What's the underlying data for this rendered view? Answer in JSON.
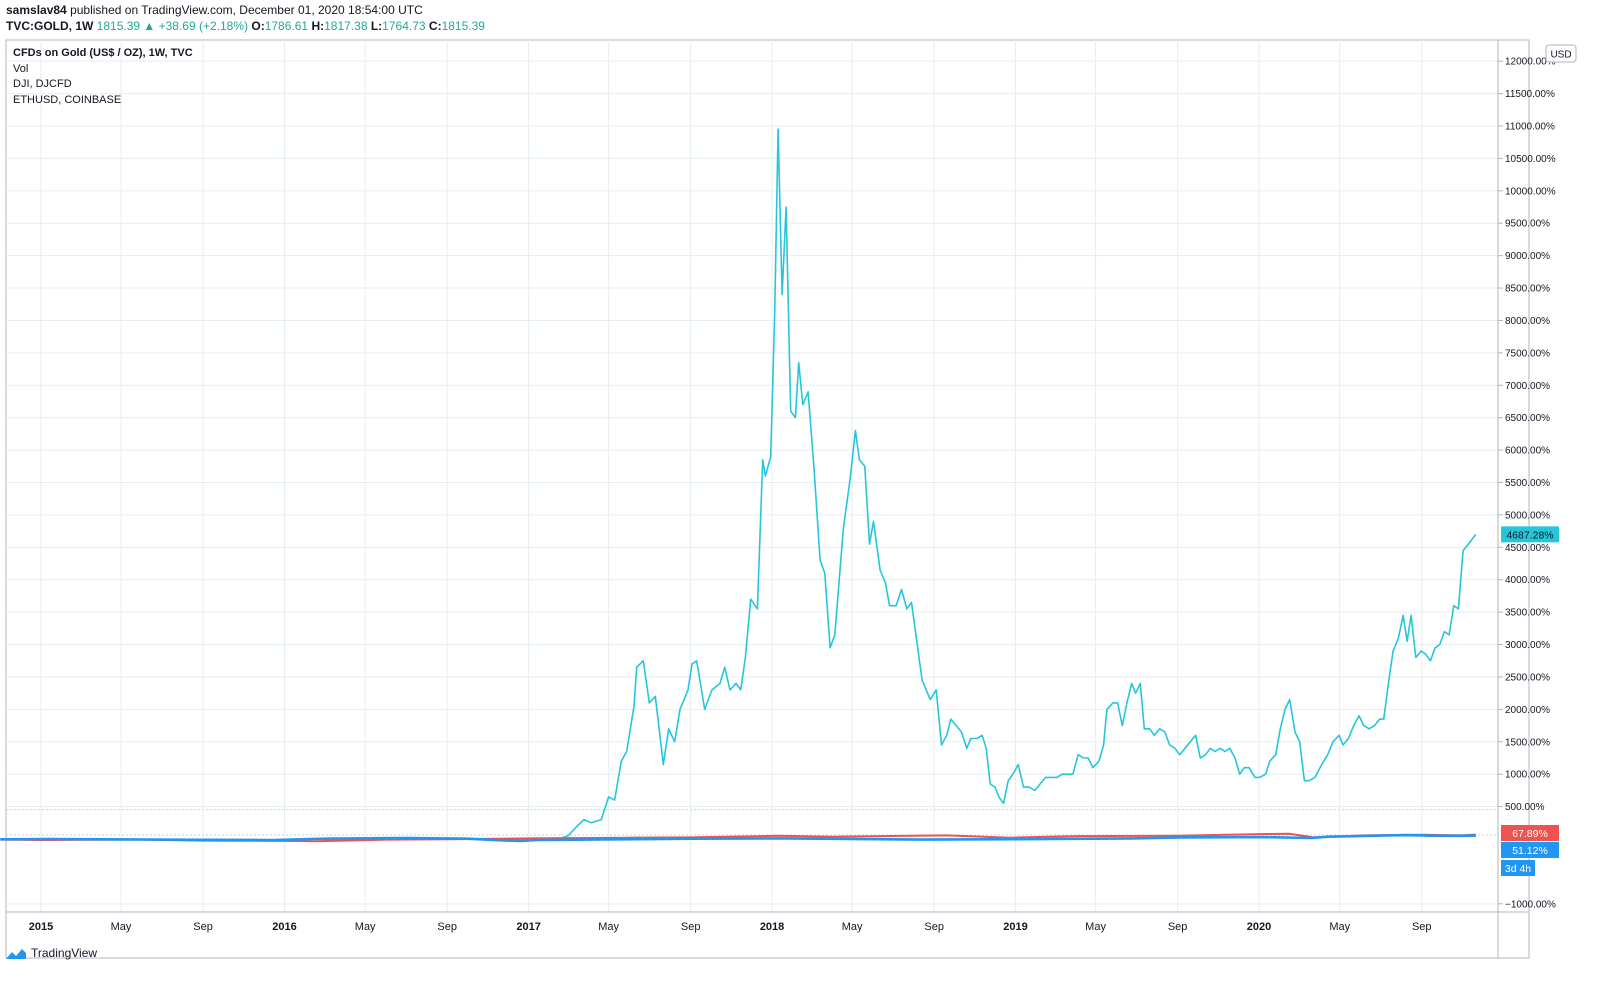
{
  "header": {
    "author": "samslav84",
    "published_text": "published on TradingView.com, December 01, 2020 18:54:00 UTC",
    "symbol": "TVC:GOLD, 1W",
    "last": "1815.39",
    "change": "▲ +38.69 (+2.18%)",
    "o_label": "O:",
    "o_value": "1786.61",
    "h_label": "H:",
    "h_value": "1817.38",
    "l_label": "L:",
    "l_value": "1764.73",
    "c_label": "C:",
    "c_value": "1815.39"
  },
  "legend": {
    "main": "CFDs on Gold (US$ / OZ), 1W, TVC",
    "items": [
      "Vol",
      "DJI, DJCFD",
      "ETHUSD, COINBASE"
    ]
  },
  "footer": {
    "brand": "TradingView"
  },
  "colors": {
    "eth": "#26c6da",
    "dji": "#ef5350",
    "gold": "#2196f3",
    "grid": "#e6eef3",
    "axis_text": "#131722"
  },
  "chart_data": {
    "type": "line",
    "xlabel": "",
    "ylabel": "",
    "y_unit": "%",
    "ylim": [
      -1000,
      12000
    ],
    "xlim": [
      "2014-11-01",
      "2020-12-05"
    ],
    "scale_currency": "USD",
    "y_ticks": [
      -1000,
      500,
      1000,
      1500,
      2000,
      2500,
      3000,
      3500,
      4000,
      4500,
      5000,
      5500,
      6000,
      6500,
      7000,
      7500,
      8000,
      8500,
      9000,
      9500,
      10000,
      10500,
      11000,
      11500,
      12000
    ],
    "y_tick_labels": [
      "−1000.00%",
      "500.00%",
      "1000.00%",
      "1500.00%",
      "2000.00%",
      "2500.00%",
      "3000.00%",
      "3500.00%",
      "4000.00%",
      "4500.00%",
      "5000.00%",
      "5500.00%",
      "6000.00%",
      "6500.00%",
      "7000.00%",
      "7500.00%",
      "8000.00%",
      "8500.00%",
      "9000.00%",
      "9500.00%",
      "10000.00%",
      "10500.00%",
      "11000.00%",
      "11500.00%",
      "12000.00%"
    ],
    "x_ticks": [
      {
        "date": "2015-01-01",
        "label": "2015",
        "major": true
      },
      {
        "date": "2015-05-01",
        "label": "May",
        "major": false
      },
      {
        "date": "2015-09-01",
        "label": "Sep",
        "major": false
      },
      {
        "date": "2016-01-01",
        "label": "2016",
        "major": true
      },
      {
        "date": "2016-05-01",
        "label": "May",
        "major": false
      },
      {
        "date": "2016-09-01",
        "label": "Sep",
        "major": false
      },
      {
        "date": "2017-01-01",
        "label": "2017",
        "major": true
      },
      {
        "date": "2017-05-01",
        "label": "May",
        "major": false
      },
      {
        "date": "2017-09-01",
        "label": "Sep",
        "major": false
      },
      {
        "date": "2018-01-01",
        "label": "2018",
        "major": true
      },
      {
        "date": "2018-05-01",
        "label": "May",
        "major": false
      },
      {
        "date": "2018-09-01",
        "label": "Sep",
        "major": false
      },
      {
        "date": "2019-01-01",
        "label": "2019",
        "major": true
      },
      {
        "date": "2019-05-01",
        "label": "May",
        "major": false
      },
      {
        "date": "2019-09-01",
        "label": "Sep",
        "major": false
      },
      {
        "date": "2020-01-01",
        "label": "2020",
        "major": true
      },
      {
        "date": "2020-05-01",
        "label": "May",
        "major": false
      },
      {
        "date": "2020-09-01",
        "label": "Sep",
        "major": false
      }
    ],
    "series": [
      {
        "name": "ETHUSD, COINBASE",
        "last_label": "4687.28%",
        "points": [
          [
            "2017-02-15",
            0
          ],
          [
            "2017-03-01",
            50
          ],
          [
            "2017-03-15",
            200
          ],
          [
            "2017-03-25",
            300
          ],
          [
            "2017-04-05",
            250
          ],
          [
            "2017-04-20",
            300
          ],
          [
            "2017-05-01",
            650
          ],
          [
            "2017-05-10",
            600
          ],
          [
            "2017-05-20",
            1200
          ],
          [
            "2017-05-28",
            1350
          ],
          [
            "2017-06-08",
            2050
          ],
          [
            "2017-06-12",
            2650
          ],
          [
            "2017-06-22",
            2750
          ],
          [
            "2017-07-01",
            2100
          ],
          [
            "2017-07-10",
            2200
          ],
          [
            "2017-07-22",
            1150
          ],
          [
            "2017-07-30",
            1700
          ],
          [
            "2017-08-08",
            1500
          ],
          [
            "2017-08-16",
            2000
          ],
          [
            "2017-08-28",
            2300
          ],
          [
            "2017-09-03",
            2700
          ],
          [
            "2017-09-10",
            2750
          ],
          [
            "2017-09-22",
            2000
          ],
          [
            "2017-10-03",
            2300
          ],
          [
            "2017-10-15",
            2400
          ],
          [
            "2017-10-22",
            2650
          ],
          [
            "2017-10-30",
            2300
          ],
          [
            "2017-11-08",
            2400
          ],
          [
            "2017-11-15",
            2300
          ],
          [
            "2017-11-22",
            2800
          ],
          [
            "2017-11-30",
            3700
          ],
          [
            "2017-12-10",
            3550
          ],
          [
            "2017-12-18",
            5850
          ],
          [
            "2017-12-22",
            5600
          ],
          [
            "2017-12-30",
            5900
          ],
          [
            "2018-01-05",
            8100
          ],
          [
            "2018-01-10",
            10950
          ],
          [
            "2018-01-16",
            8400
          ],
          [
            "2018-01-22",
            9750
          ],
          [
            "2018-01-29",
            6600
          ],
          [
            "2018-02-05",
            6500
          ],
          [
            "2018-02-10",
            7350
          ],
          [
            "2018-02-16",
            6700
          ],
          [
            "2018-02-24",
            6900
          ],
          [
            "2018-03-05",
            5700
          ],
          [
            "2018-03-14",
            4300
          ],
          [
            "2018-03-21",
            4100
          ],
          [
            "2018-03-29",
            2950
          ],
          [
            "2018-04-05",
            3150
          ],
          [
            "2018-04-18",
            4800
          ],
          [
            "2018-04-28",
            5550
          ],
          [
            "2018-05-06",
            6300
          ],
          [
            "2018-05-12",
            5850
          ],
          [
            "2018-05-20",
            5750
          ],
          [
            "2018-05-27",
            4550
          ],
          [
            "2018-06-02",
            4900
          ],
          [
            "2018-06-12",
            4150
          ],
          [
            "2018-06-20",
            3950
          ],
          [
            "2018-06-26",
            3600
          ],
          [
            "2018-07-06",
            3600
          ],
          [
            "2018-07-14",
            3850
          ],
          [
            "2018-07-22",
            3550
          ],
          [
            "2018-07-29",
            3650
          ],
          [
            "2018-08-06",
            3050
          ],
          [
            "2018-08-14",
            2450
          ],
          [
            "2018-08-20",
            2300
          ],
          [
            "2018-08-26",
            2150
          ],
          [
            "2018-09-04",
            2300
          ],
          [
            "2018-09-12",
            1450
          ],
          [
            "2018-09-20",
            1600
          ],
          [
            "2018-09-26",
            1850
          ],
          [
            "2018-10-04",
            1750
          ],
          [
            "2018-10-12",
            1650
          ],
          [
            "2018-10-20",
            1400
          ],
          [
            "2018-10-26",
            1550
          ],
          [
            "2018-11-04",
            1550
          ],
          [
            "2018-11-12",
            1600
          ],
          [
            "2018-11-18",
            1400
          ],
          [
            "2018-11-24",
            850
          ],
          [
            "2018-12-01",
            800
          ],
          [
            "2018-12-07",
            650
          ],
          [
            "2018-12-14",
            550
          ],
          [
            "2018-12-21",
            900
          ],
          [
            "2018-12-28",
            1000
          ],
          [
            "2019-01-05",
            1150
          ],
          [
            "2019-01-13",
            800
          ],
          [
            "2019-01-21",
            800
          ],
          [
            "2019-01-30",
            750
          ],
          [
            "2019-02-07",
            850
          ],
          [
            "2019-02-15",
            950
          ],
          [
            "2019-02-24",
            950
          ],
          [
            "2019-03-04",
            950
          ],
          [
            "2019-03-12",
            1000
          ],
          [
            "2019-03-20",
            1000
          ],
          [
            "2019-03-28",
            1000
          ],
          [
            "2019-04-05",
            1300
          ],
          [
            "2019-04-13",
            1250
          ],
          [
            "2019-04-20",
            1250
          ],
          [
            "2019-04-27",
            1100
          ],
          [
            "2019-05-06",
            1200
          ],
          [
            "2019-05-13",
            1450
          ],
          [
            "2019-05-18",
            2000
          ],
          [
            "2019-05-27",
            2100
          ],
          [
            "2019-06-03",
            2100
          ],
          [
            "2019-06-10",
            1750
          ],
          [
            "2019-06-17",
            2100
          ],
          [
            "2019-06-24",
            2400
          ],
          [
            "2019-06-30",
            2250
          ],
          [
            "2019-07-07",
            2400
          ],
          [
            "2019-07-13",
            1700
          ],
          [
            "2019-07-21",
            1700
          ],
          [
            "2019-07-28",
            1600
          ],
          [
            "2019-08-05",
            1700
          ],
          [
            "2019-08-13",
            1650
          ],
          [
            "2019-08-20",
            1450
          ],
          [
            "2019-08-28",
            1400
          ],
          [
            "2019-09-04",
            1300
          ],
          [
            "2019-09-12",
            1400
          ],
          [
            "2019-09-20",
            1500
          ],
          [
            "2019-09-28",
            1600
          ],
          [
            "2019-10-05",
            1250
          ],
          [
            "2019-10-13",
            1300
          ],
          [
            "2019-10-20",
            1400
          ],
          [
            "2019-10-27",
            1350
          ],
          [
            "2019-11-04",
            1400
          ],
          [
            "2019-11-11",
            1350
          ],
          [
            "2019-11-18",
            1400
          ],
          [
            "2019-11-26",
            1250
          ],
          [
            "2019-12-03",
            1000
          ],
          [
            "2019-12-10",
            1100
          ],
          [
            "2019-12-17",
            1100
          ],
          [
            "2019-12-26",
            950
          ],
          [
            "2020-01-02",
            950
          ],
          [
            "2020-01-11",
            1000
          ],
          [
            "2020-01-17",
            1200
          ],
          [
            "2020-01-26",
            1300
          ],
          [
            "2020-02-02",
            1700
          ],
          [
            "2020-02-09",
            2000
          ],
          [
            "2020-02-16",
            2150
          ],
          [
            "2020-02-24",
            1650
          ],
          [
            "2020-03-02",
            1500
          ],
          [
            "2020-03-09",
            900
          ],
          [
            "2020-03-16",
            900
          ],
          [
            "2020-03-25",
            950
          ],
          [
            "2020-04-04",
            1150
          ],
          [
            "2020-04-13",
            1300
          ],
          [
            "2020-04-21",
            1500
          ],
          [
            "2020-04-30",
            1600
          ],
          [
            "2020-05-06",
            1450
          ],
          [
            "2020-05-14",
            1550
          ],
          [
            "2020-05-22",
            1750
          ],
          [
            "2020-05-30",
            1900
          ],
          [
            "2020-06-06",
            1750
          ],
          [
            "2020-06-14",
            1700
          ],
          [
            "2020-06-22",
            1750
          ],
          [
            "2020-06-30",
            1850
          ],
          [
            "2020-07-06",
            1850
          ],
          [
            "2020-07-13",
            2400
          ],
          [
            "2020-07-20",
            2900
          ],
          [
            "2020-07-28",
            3100
          ],
          [
            "2020-08-04",
            3450
          ],
          [
            "2020-08-10",
            3050
          ],
          [
            "2020-08-16",
            3450
          ],
          [
            "2020-08-23",
            2800
          ],
          [
            "2020-08-31",
            2900
          ],
          [
            "2020-09-07",
            2850
          ],
          [
            "2020-09-14",
            2750
          ],
          [
            "2020-09-21",
            2950
          ],
          [
            "2020-09-28",
            3000
          ],
          [
            "2020-10-05",
            3200
          ],
          [
            "2020-10-12",
            3150
          ],
          [
            "2020-10-19",
            3600
          ],
          [
            "2020-10-26",
            3550
          ],
          [
            "2020-11-02",
            4450
          ],
          [
            "2020-11-10",
            4550
          ],
          [
            "2020-11-21",
            4700
          ]
        ]
      },
      {
        "name": "DJI, DJCFD",
        "last_label": "67.89%",
        "points": [
          [
            "2014-11-01",
            -10
          ],
          [
            "2015-01-01",
            -15
          ],
          [
            "2015-06-01",
            -10
          ],
          [
            "2015-09-01",
            -25
          ],
          [
            "2016-01-01",
            -30
          ],
          [
            "2016-02-15",
            -35
          ],
          [
            "2016-06-01",
            -10
          ],
          [
            "2016-09-01",
            -5
          ],
          [
            "2017-01-01",
            10
          ],
          [
            "2017-06-01",
            20
          ],
          [
            "2017-09-01",
            25
          ],
          [
            "2018-01-10",
            50
          ],
          [
            "2018-04-01",
            35
          ],
          [
            "2018-09-20",
            55
          ],
          [
            "2018-12-24",
            20
          ],
          [
            "2019-04-01",
            45
          ],
          [
            "2019-09-01",
            50
          ],
          [
            "2020-01-01",
            75
          ],
          [
            "2020-02-15",
            80
          ],
          [
            "2020-03-23",
            25
          ],
          [
            "2020-06-08",
            55
          ],
          [
            "2020-09-01",
            65
          ],
          [
            "2020-10-30",
            55
          ],
          [
            "2020-11-21",
            68
          ]
        ]
      },
      {
        "name": "CFDs on Gold (US$ / OZ), 1W, TVC",
        "last_label": "51.12%",
        "points": [
          [
            "2014-11-01",
            -5
          ],
          [
            "2015-01-15",
            0
          ],
          [
            "2015-06-01",
            -8
          ],
          [
            "2015-09-01",
            -12
          ],
          [
            "2015-12-15",
            -15
          ],
          [
            "2016-03-01",
            5
          ],
          [
            "2016-07-06",
            15
          ],
          [
            "2016-10-01",
            5
          ],
          [
            "2016-11-20",
            -20
          ],
          [
            "2016-12-20",
            -30
          ],
          [
            "2017-01-15",
            -15
          ],
          [
            "2017-09-08",
            5
          ],
          [
            "2018-01-25",
            10
          ],
          [
            "2018-08-15",
            -10
          ],
          [
            "2019-01-01",
            -3
          ],
          [
            "2019-06-25",
            10
          ],
          [
            "2019-09-05",
            25
          ],
          [
            "2020-01-08",
            30
          ],
          [
            "2020-03-19",
            15
          ],
          [
            "2020-04-14",
            35
          ],
          [
            "2020-08-07",
            60
          ],
          [
            "2020-09-25",
            50
          ],
          [
            "2020-11-21",
            51
          ]
        ]
      }
    ],
    "countdown_label": "3d 4h"
  }
}
